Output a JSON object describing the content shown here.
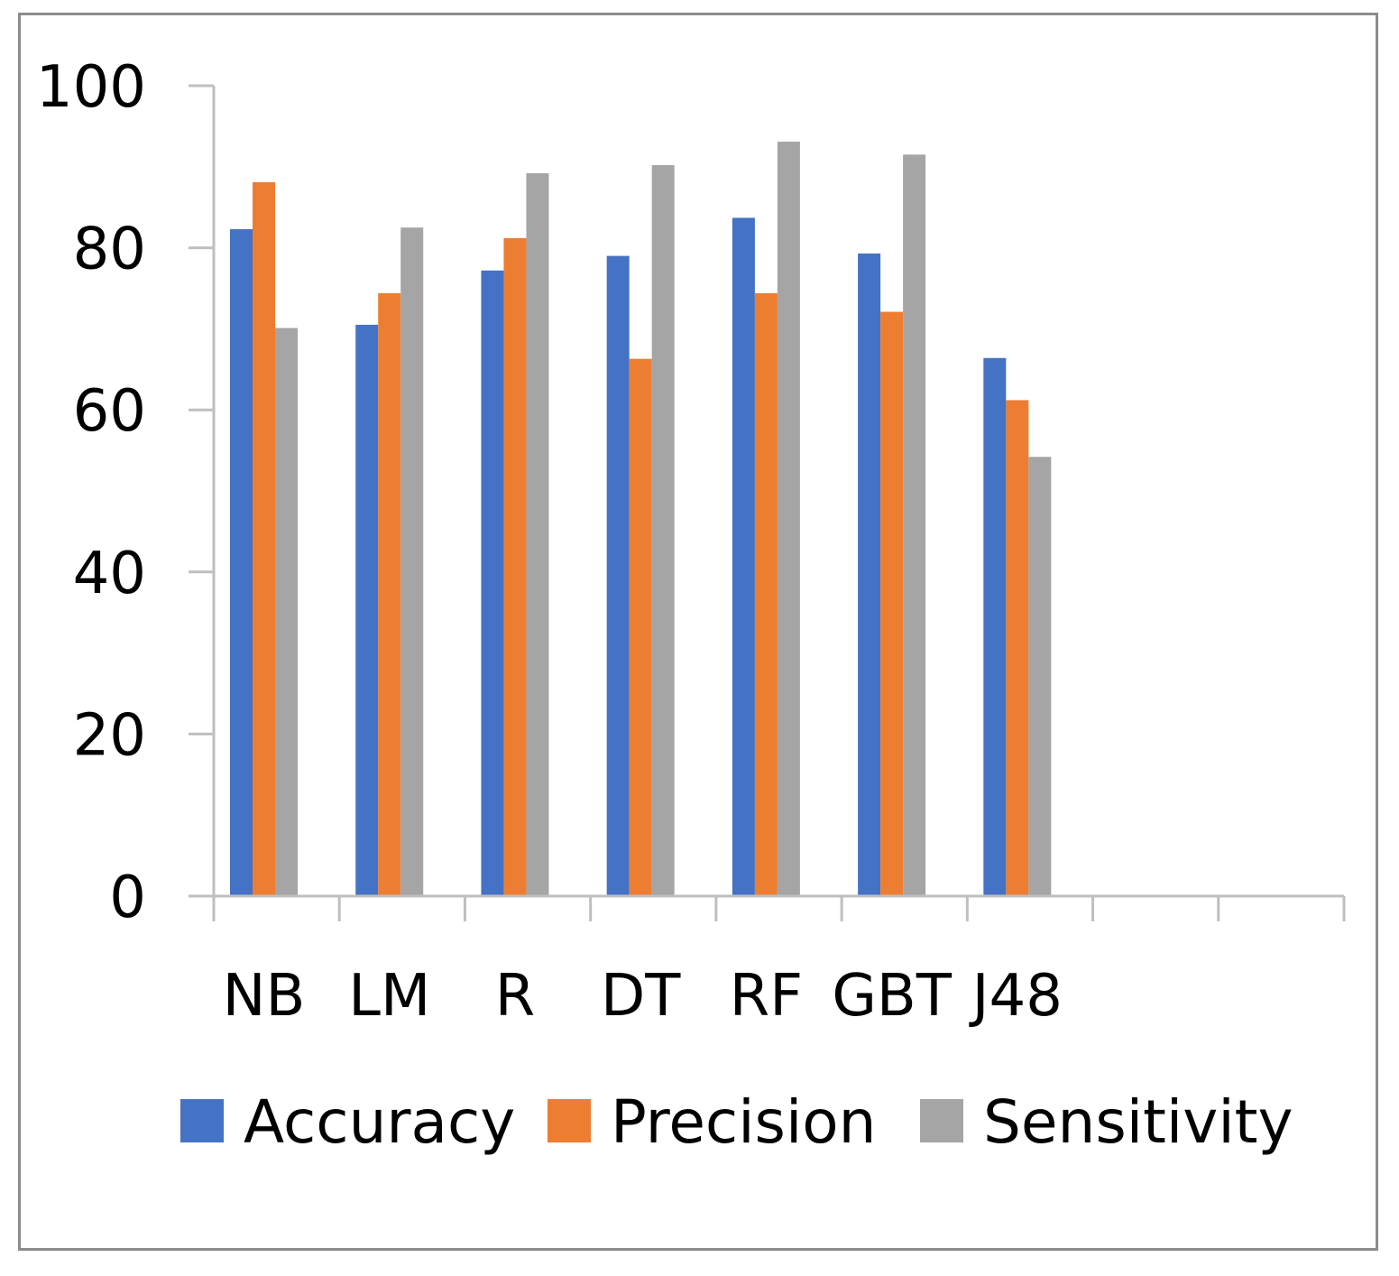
{
  "chart_data": {
    "type": "bar",
    "title": "",
    "xlabel": "",
    "ylabel": "",
    "ylim": [
      0,
      100
    ],
    "yticks": [
      0,
      20,
      40,
      60,
      80,
      100
    ],
    "grid": false,
    "legend_position": "bottom",
    "categories": [
      "NB",
      "LM",
      "R",
      "DT",
      "RF",
      "GBT",
      "J48"
    ],
    "empty_slots_after_categories": 2,
    "series": [
      {
        "name": "Accuracy",
        "color": "#4472c4",
        "values": [
          82.3,
          70.5,
          77.2,
          79.0,
          83.7,
          79.3,
          66.4
        ]
      },
      {
        "name": "Precision",
        "color": "#ed7d31",
        "values": [
          88.1,
          74.4,
          81.2,
          66.3,
          74.4,
          72.1,
          61.2
        ]
      },
      {
        "name": "Sensitivity",
        "color": "#a5a5a5",
        "values": [
          70.1,
          82.5,
          89.2,
          90.2,
          93.1,
          91.5,
          54.2
        ]
      }
    ]
  }
}
